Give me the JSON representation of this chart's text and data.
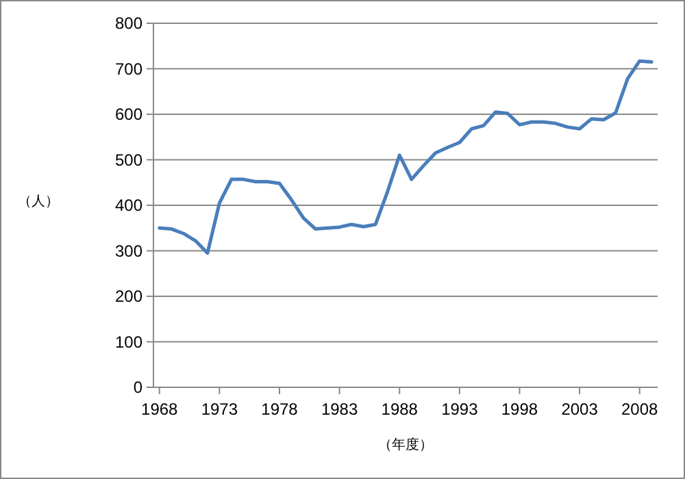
{
  "chart_data": {
    "type": "line",
    "xlabel": "（年度）",
    "ylabel": "（人）",
    "x": [
      1968,
      1969,
      1970,
      1971,
      1972,
      1973,
      1974,
      1975,
      1976,
      1977,
      1978,
      1979,
      1980,
      1981,
      1982,
      1983,
      1984,
      1985,
      1986,
      1987,
      1988,
      1989,
      1990,
      1991,
      1992,
      1993,
      1994,
      1995,
      1996,
      1997,
      1998,
      1999,
      2000,
      2001,
      2002,
      2003,
      2004,
      2005,
      2006,
      2007,
      2008,
      2009
    ],
    "series": [
      {
        "color": "#4a7ebb",
        "values": [
          350,
          348,
          338,
          322,
          295,
          405,
          457,
          457,
          452,
          452,
          448,
          412,
          372,
          348,
          350,
          352,
          358,
          353,
          358,
          430,
          510,
          457,
          487,
          515,
          527,
          538,
          568,
          575,
          605,
          602,
          577,
          583,
          583,
          580,
          572,
          568,
          590,
          588,
          603,
          678,
          717,
          715
        ]
      }
    ],
    "xlim": [
      1967.5,
      2009.5
    ],
    "xticks": [
      1968,
      1973,
      1978,
      1983,
      1988,
      1993,
      1998,
      2003,
      2008
    ],
    "ylim": [
      0,
      800
    ],
    "yticks": [
      0,
      100,
      200,
      300,
      400,
      500,
      600,
      700,
      800
    ],
    "grid": "y",
    "marker": "none",
    "line_style": "solid"
  }
}
